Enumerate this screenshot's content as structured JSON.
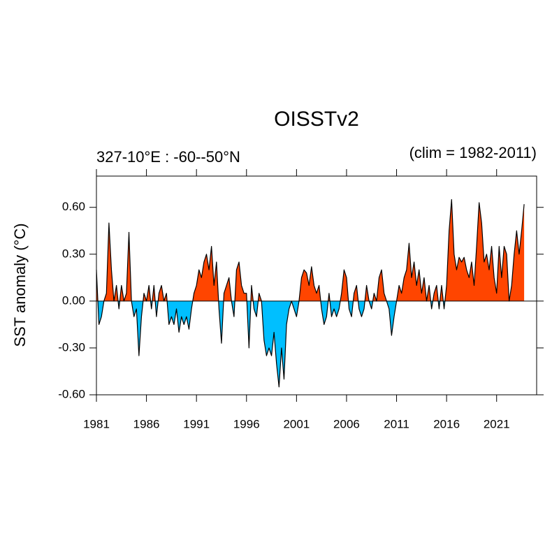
{
  "chart_data": {
    "type": "area",
    "title": "OISSTv2",
    "subtitle_left": "327-10°E : -60--50°N",
    "subtitle_right": "(clim = 1982-2011)",
    "y_label": "SST anomaly (°C)",
    "xlim": [
      1981,
      2025
    ],
    "xticks": [
      1981,
      1986,
      1991,
      1996,
      2001,
      2006,
      2011,
      2016,
      2021
    ],
    "ylim": [
      -0.6,
      0.8
    ],
    "yticks": [
      {
        "value": -0.6,
        "label": "-0.60"
      },
      {
        "value": -0.3,
        "label": "-0.30"
      },
      {
        "value": 0,
        "label": "0.00"
      },
      {
        "value": 0.3,
        "label": "0.30"
      },
      {
        "value": 0.6,
        "label": "0.60"
      }
    ],
    "positive_color": "#ff4500",
    "negative_color": "#00bfff",
    "line_color": "#000000",
    "x": [
      1981,
      1981.25,
      1981.5,
      1981.75,
      1982,
      1982.25,
      1982.5,
      1982.75,
      1983,
      1983.25,
      1983.5,
      1983.75,
      1984,
      1984.25,
      1984.5,
      1984.75,
      1985,
      1985.25,
      1985.5,
      1985.75,
      1986,
      1986.25,
      1986.5,
      1986.75,
      1987,
      1987.25,
      1987.5,
      1987.75,
      1988,
      1988.25,
      1988.5,
      1988.75,
      1989,
      1989.25,
      1989.5,
      1989.75,
      1990,
      1990.25,
      1990.5,
      1990.75,
      1991,
      1991.25,
      1991.5,
      1991.75,
      1992,
      1992.25,
      1992.5,
      1992.75,
      1993,
      1993.25,
      1993.5,
      1993.75,
      1994,
      1994.25,
      1994.5,
      1994.75,
      1995,
      1995.25,
      1995.5,
      1995.75,
      1996,
      1996.25,
      1996.5,
      1996.75,
      1997,
      1997.25,
      1997.5,
      1997.75,
      1998,
      1998.25,
      1998.5,
      1998.75,
      1999,
      1999.25,
      1999.5,
      1999.75,
      2000,
      2000.25,
      2000.5,
      2000.75,
      2001,
      2001.25,
      2001.5,
      2001.75,
      2002,
      2002.25,
      2002.5,
      2002.75,
      2003,
      2003.25,
      2003.5,
      2003.75,
      2004,
      2004.25,
      2004.5,
      2004.75,
      2005,
      2005.25,
      2005.5,
      2005.75,
      2006,
      2006.25,
      2006.5,
      2006.75,
      2007,
      2007.25,
      2007.5,
      2007.75,
      2008,
      2008.25,
      2008.5,
      2008.75,
      2009,
      2009.25,
      2009.5,
      2009.75,
      2010,
      2010.25,
      2010.5,
      2010.75,
      2011,
      2011.25,
      2011.5,
      2011.75,
      2012,
      2012.25,
      2012.5,
      2012.75,
      2013,
      2013.25,
      2013.5,
      2013.75,
      2014,
      2014.25,
      2014.5,
      2014.75,
      2015,
      2015.25,
      2015.5,
      2015.75,
      2016,
      2016.25,
      2016.5,
      2016.75,
      2017,
      2017.25,
      2017.5,
      2017.75,
      2018,
      2018.25,
      2018.5,
      2018.75,
      2019,
      2019.25,
      2019.5,
      2019.75,
      2020,
      2020.25,
      2020.5,
      2020.75,
      2021,
      2021.25,
      2021.5,
      2021.75,
      2022,
      2022.25,
      2022.5,
      2022.75,
      2023,
      2023.25,
      2023.5,
      2023.75
    ],
    "values": [
      0.2,
      -0.15,
      -0.1,
      0.0,
      0.05,
      0.5,
      0.2,
      0.0,
      0.1,
      -0.05,
      0.1,
      0.0,
      0.05,
      0.44,
      0.0,
      -0.1,
      -0.05,
      -0.35,
      -0.1,
      0.05,
      0.0,
      0.1,
      -0.05,
      0.1,
      -0.1,
      0.05,
      0.1,
      0.0,
      0.05,
      -0.15,
      -0.1,
      -0.15,
      -0.05,
      -0.2,
      -0.1,
      -0.15,
      -0.1,
      -0.18,
      -0.05,
      0.05,
      0.1,
      0.2,
      0.15,
      0.25,
      0.3,
      0.2,
      0.35,
      0.1,
      0.25,
      -0.05,
      -0.27,
      0.05,
      0.1,
      0.15,
      0.0,
      -0.1,
      0.2,
      0.25,
      0.1,
      0.05,
      0.05,
      -0.3,
      0.1,
      -0.05,
      -0.1,
      0.05,
      0.0,
      -0.25,
      -0.35,
      -0.3,
      -0.35,
      -0.2,
      -0.4,
      -0.55,
      -0.3,
      -0.5,
      -0.15,
      -0.05,
      0.0,
      -0.05,
      -0.1,
      0.0,
      0.15,
      0.2,
      0.18,
      0.1,
      0.22,
      0.1,
      0.05,
      0.1,
      -0.05,
      -0.15,
      -0.1,
      0.05,
      -0.1,
      -0.05,
      -0.1,
      -0.05,
      0.05,
      0.2,
      0.15,
      -0.05,
      -0.1,
      0.05,
      0.1,
      -0.05,
      -0.1,
      -0.05,
      0.1,
      0.0,
      -0.05,
      0.05,
      0.0,
      0.15,
      0.2,
      0.05,
      0.0,
      -0.05,
      -0.22,
      -0.1,
      0.0,
      0.1,
      0.05,
      0.15,
      0.2,
      0.37,
      0.15,
      0.25,
      0.1,
      0.2,
      0.05,
      0.15,
      0.0,
      0.1,
      -0.05,
      0.05,
      0.1,
      -0.05,
      0.1,
      -0.05,
      0.1,
      0.45,
      0.65,
      0.3,
      0.2,
      0.28,
      0.25,
      0.28,
      0.2,
      0.15,
      0.25,
      0.1,
      0.35,
      0.63,
      0.5,
      0.25,
      0.3,
      0.2,
      0.35,
      0.15,
      0.05,
      0.35,
      0.15,
      0.35,
      0.3,
      0.0,
      0.1,
      0.3,
      0.45,
      0.3,
      0.45,
      0.62
    ]
  }
}
